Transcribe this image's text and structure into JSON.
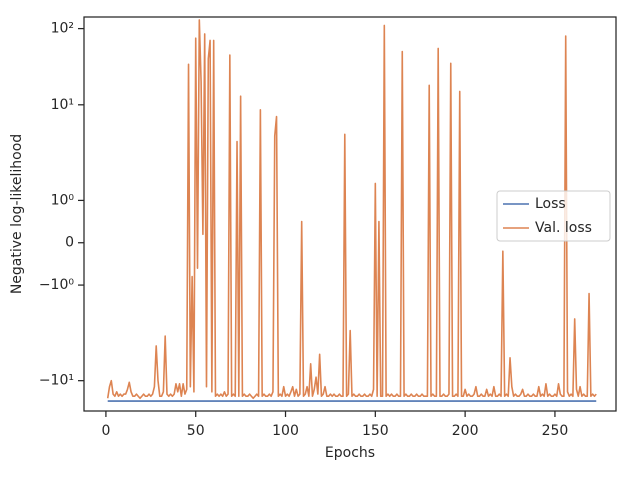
{
  "chart_data": {
    "type": "line",
    "xlabel": "Epochs",
    "ylabel": "Negative log-likelihood",
    "yscale": "symlog",
    "linthresh": 2,
    "linscale": 1,
    "xlim": [
      -12.2,
      284
    ],
    "xticks": [
      0,
      50,
      100,
      150,
      200,
      250
    ],
    "ylim": [
      -25,
      142
    ],
    "yticks": [
      {
        "value": -10,
        "label": "−10¹"
      },
      {
        "value": -1,
        "label": "−10⁰"
      },
      0,
      {
        "value": 1,
        "label": "10⁰"
      },
      {
        "value": 10,
        "label": "10¹"
      },
      {
        "value": 100,
        "label": "10²"
      }
    ],
    "legend": "center right",
    "x": [
      1,
      2,
      3,
      4,
      5,
      6,
      7,
      8,
      9,
      10,
      11,
      12,
      13,
      14,
      15,
      16,
      17,
      18,
      19,
      20,
      21,
      22,
      23,
      24,
      25,
      26,
      27,
      28,
      29,
      30,
      31,
      32,
      33,
      34,
      35,
      36,
      37,
      38,
      39,
      40,
      41,
      42,
      43,
      44,
      45,
      46,
      47,
      48,
      49,
      50,
      51,
      52,
      53,
      54,
      55,
      56,
      57,
      58,
      59,
      60,
      61,
      62,
      63,
      64,
      65,
      66,
      67,
      68,
      69,
      70,
      71,
      72,
      73,
      74,
      75,
      76,
      77,
      78,
      79,
      80,
      81,
      82,
      83,
      84,
      85,
      86,
      87,
      88,
      89,
      90,
      91,
      92,
      93,
      94,
      95,
      96,
      97,
      98,
      99,
      100,
      101,
      102,
      103,
      104,
      105,
      106,
      107,
      108,
      109,
      110,
      111,
      112,
      113,
      114,
      115,
      116,
      117,
      118,
      119,
      120,
      121,
      122,
      123,
      124,
      125,
      126,
      127,
      128,
      129,
      130,
      131,
      132,
      133,
      134,
      135,
      136,
      137,
      138,
      139,
      140,
      141,
      142,
      143,
      144,
      145,
      146,
      147,
      148,
      149,
      150,
      151,
      152,
      153,
      154,
      155,
      156,
      157,
      158,
      159,
      160,
      161,
      162,
      163,
      164,
      165,
      166,
      167,
      168,
      169,
      170,
      171,
      172,
      173,
      174,
      175,
      176,
      177,
      178,
      179,
      180,
      181,
      182,
      183,
      184,
      185,
      186,
      187,
      188,
      189,
      190,
      191,
      192,
      193,
      194,
      195,
      196,
      197,
      198,
      199,
      200,
      201,
      202,
      203,
      204,
      205,
      206,
      207,
      208,
      209,
      210,
      211,
      212,
      213,
      214,
      215,
      216,
      217,
      218,
      219,
      220,
      221,
      222,
      223,
      224,
      225,
      226,
      227,
      228,
      229,
      230,
      231,
      232,
      233,
      234,
      235,
      236,
      237,
      238,
      239,
      240,
      241,
      242,
      243,
      244,
      245,
      246,
      247,
      248,
      249,
      250,
      251,
      252,
      253,
      254,
      255,
      256,
      257,
      258,
      259,
      260,
      261,
      262,
      263,
      264,
      265,
      266,
      267,
      268,
      269,
      270,
      271,
      272,
      273
    ],
    "series": [
      {
        "name": "Loss",
        "color": "#4c72b0",
        "x": [
          1,
          273
        ],
        "values": [
          -18.5,
          -18.5
        ]
      },
      {
        "name": "Val. loss",
        "color": "#dd8452",
        "values": [
          -17,
          -12,
          -10,
          -15,
          -16,
          -14,
          -16,
          -15,
          -16,
          -15,
          -15,
          -13,
          -10.5,
          -14,
          -16,
          -16,
          -15,
          -16,
          -17,
          -16,
          -15,
          -16,
          -16,
          -15,
          -16,
          -15,
          -12,
          -3.5,
          -10,
          -16,
          -16,
          -14,
          -2.6,
          -15,
          -16,
          -15,
          -16,
          -15,
          -11,
          -14,
          -11,
          -16,
          -11,
          -15,
          -13,
          34,
          -12,
          -0.8,
          -14,
          75,
          -0.6,
          130,
          20,
          0.2,
          85,
          -12,
          40,
          70,
          -14,
          70,
          -16,
          -15,
          -16,
          -15,
          -16,
          -14,
          -16,
          -15,
          45,
          -16,
          -15,
          -16,
          3.3,
          -16,
          13,
          -16,
          -15,
          -16,
          -16,
          -15,
          -16,
          -17,
          -16,
          -15,
          -16,
          8.6,
          -16,
          -15,
          -16,
          -16,
          -15,
          -16,
          -14,
          3.9,
          7,
          -16,
          -15,
          -16,
          -12,
          -16,
          -15,
          -16,
          -14,
          -12,
          -16,
          -13,
          -16,
          -15,
          0.5,
          -16,
          -15,
          -12,
          -16,
          -6,
          -16,
          -13,
          -9,
          -15,
          -4.5,
          -16,
          -15,
          -12,
          -16,
          -16,
          -15,
          -16,
          -15,
          -16,
          -16,
          -15,
          -16,
          -16,
          4.1,
          -16,
          -15,
          -2.2,
          -16,
          -15,
          -16,
          -16,
          -15,
          -16,
          -16,
          -15,
          -16,
          -16,
          -15,
          -16,
          -13,
          1.4,
          -16,
          0.5,
          -16,
          -16,
          110,
          -16,
          -15,
          -16,
          -15,
          -16,
          -16,
          -15,
          -16,
          -16,
          50,
          -16,
          -15,
          -16,
          -16,
          -15,
          -16,
          -16,
          -15,
          -16,
          -16,
          -15,
          -16,
          -16,
          -16,
          18,
          -16,
          -15,
          -16,
          -16,
          55,
          -16,
          -16,
          -15,
          -16,
          -16,
          -15,
          35,
          -16,
          -16,
          -15,
          -16,
          15,
          -16,
          -16,
          -13,
          -16,
          -15,
          -16,
          -16,
          -15,
          -12,
          -16,
          -16,
          -15,
          -16,
          -16,
          -13,
          -16,
          -15,
          -16,
          -12,
          -16,
          -16,
          -15,
          -16,
          -0.2,
          -16,
          -15,
          -16,
          -5,
          -12,
          -16,
          -15,
          -16,
          -16,
          -15,
          -13,
          -16,
          -16,
          -15,
          -16,
          -16,
          -15,
          -16,
          -16,
          -12,
          -16,
          -15,
          -16,
          -11,
          -16,
          -15,
          -16,
          -16,
          -15,
          -16,
          -11,
          -15,
          -16,
          -16,
          80,
          -14,
          -16,
          -15,
          -16,
          -1.8,
          -13,
          -16,
          -12,
          -16,
          -15,
          -16,
          -16,
          -1.2,
          -16,
          -15,
          -16,
          -15
        ]
      }
    ]
  }
}
